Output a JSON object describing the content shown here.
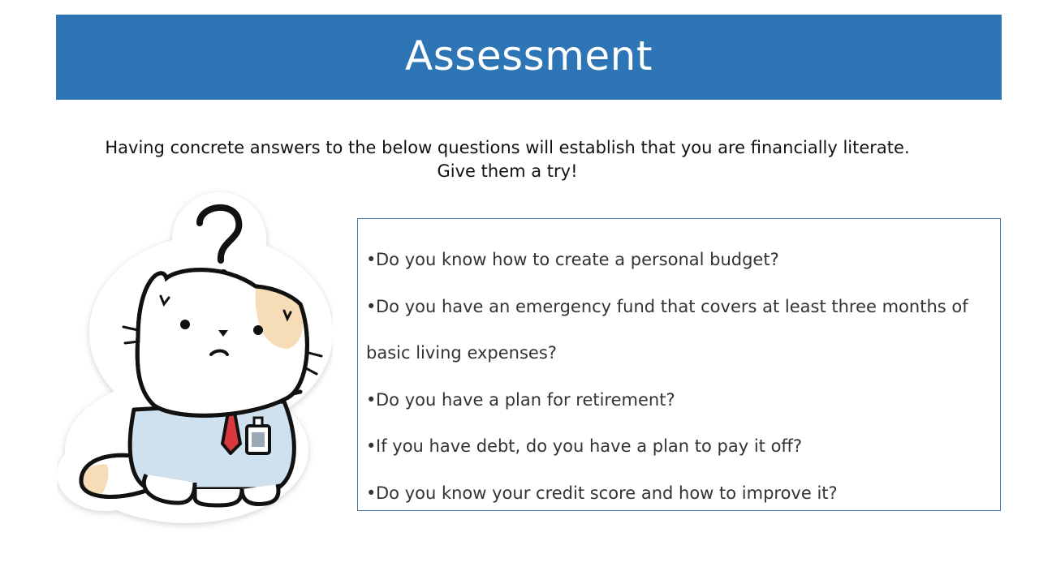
{
  "slide": {
    "title": "Assessment",
    "intro_line1": "Having concrete answers to the below questions will establish that you are financially literate.",
    "intro_line2": "Give them a try!",
    "questions": [
      "Do you know how to create a personal budget?",
      "Do you have an emergency fund that covers at least three months of basic living expenses?",
      "Do you have a plan for retirement?",
      "If you have debt, do you have a plan to pay it off?",
      "Do you know your credit score and how to improve it?"
    ],
    "bullet": "•"
  },
  "colors": {
    "banner": "#2e75b6",
    "box_border": "#41719c",
    "shirt": "#cfe0ee",
    "tie": "#d9383f",
    "patch": "#f7dcb8"
  },
  "illustration": {
    "icon": "confused-cat-sticker-icon"
  }
}
